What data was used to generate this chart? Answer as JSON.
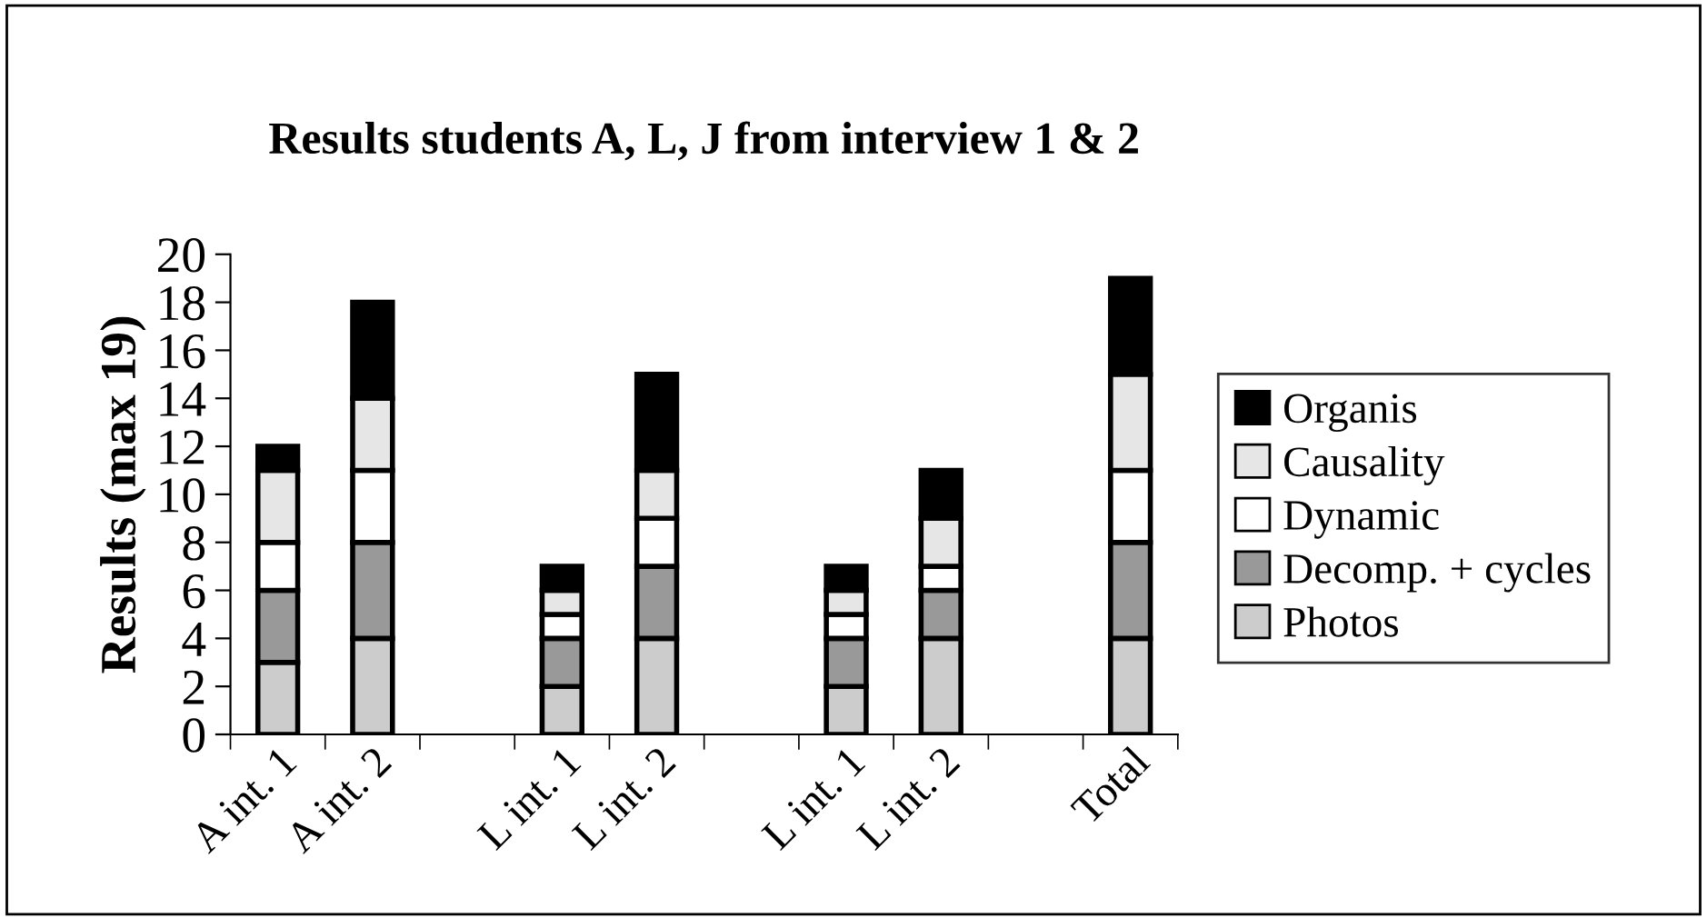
{
  "chart_data": {
    "type": "bar",
    "stacked": true,
    "title": "Results students A, L, J from interview 1 & 2",
    "ylabel": "Results (max 19)",
    "categories": [
      "A int. 1",
      "A int. 2",
      null,
      "L int. 1",
      "L int. 2",
      null,
      "L int. 1",
      "L int. 2",
      null,
      "Total"
    ],
    "series": [
      {
        "name": "Photos",
        "color": "#cccccc",
        "values": [
          3,
          4,
          null,
          2,
          4,
          null,
          2,
          4,
          null,
          4
        ]
      },
      {
        "name": "Decomp. + cycles",
        "color": "#999999",
        "values": [
          3,
          4,
          null,
          2,
          3,
          null,
          2,
          2,
          null,
          4
        ]
      },
      {
        "name": "Dynamic",
        "color": "#ffffff",
        "values": [
          2,
          3,
          null,
          1,
          2,
          null,
          1,
          1,
          null,
          3
        ]
      },
      {
        "name": "Causality",
        "color": "#e6e6e6",
        "values": [
          3,
          3,
          null,
          1,
          2,
          null,
          1,
          2,
          null,
          4
        ]
      },
      {
        "name": "Organis",
        "color": "#000000",
        "values": [
          1,
          4,
          null,
          1,
          4,
          null,
          1,
          2,
          null,
          4
        ]
      }
    ],
    "ylim": [
      0,
      20
    ],
    "yticks": [
      0,
      2,
      4,
      6,
      8,
      10,
      12,
      14,
      16,
      18,
      20
    ],
    "grid": false,
    "legend": "right"
  }
}
